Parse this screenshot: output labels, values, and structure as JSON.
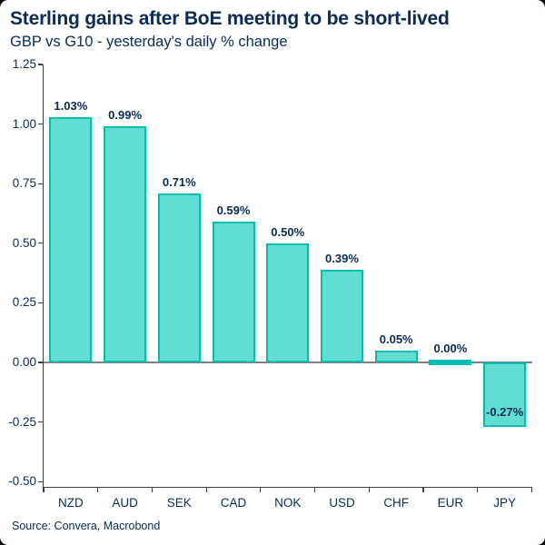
{
  "chart_data": {
    "type": "bar",
    "title": "Sterling gains after BoE meeting to be short-lived",
    "subtitle": "GBP vs G10 - yesterday's daily % change",
    "source": "Source: Convera, Macrobond",
    "categories": [
      "NZD",
      "AUD",
      "SEK",
      "CAD",
      "NOK",
      "USD",
      "CHF",
      "EUR",
      "JPY"
    ],
    "values": [
      1.03,
      0.99,
      0.71,
      0.59,
      0.5,
      0.39,
      0.05,
      0.0,
      -0.27
    ],
    "value_labels": [
      "1.03%",
      "0.99%",
      "0.71%",
      "0.59%",
      "0.50%",
      "0.39%",
      "0.05%",
      "0.00%",
      "-0.27%"
    ],
    "xlabel": "",
    "ylabel": "",
    "ylim": [
      -0.5,
      1.25
    ],
    "y_ticks": [
      "1.25",
      "1.00",
      "0.75",
      "0.50",
      "0.25",
      "0.00",
      "-0.25",
      "-0.50"
    ],
    "grid": false,
    "legend_position": "none",
    "colors": {
      "bar_fill": "#62DDD1",
      "bar_border": "#00BFB2",
      "text_navy": "#0A2B57",
      "zero_line": "#808080",
      "axis": "#3F3F3F",
      "background": "#FFFFFF"
    }
  }
}
